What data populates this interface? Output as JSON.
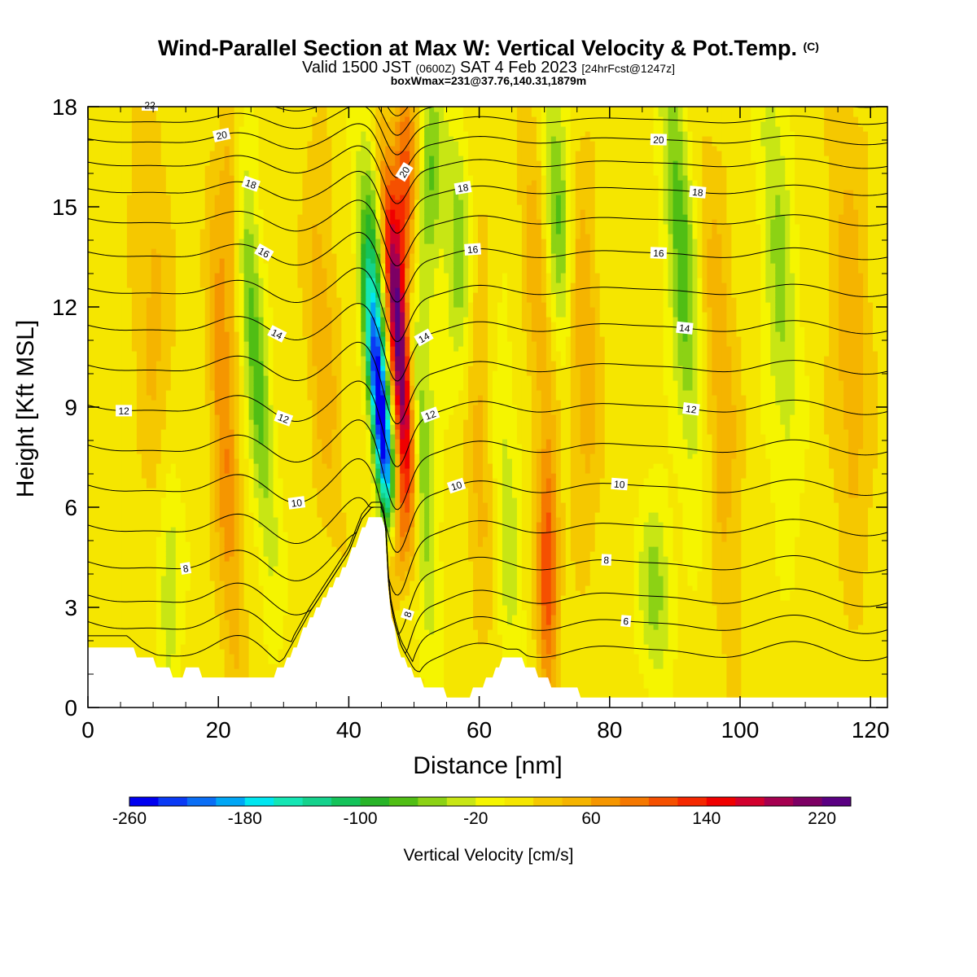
{
  "header": {
    "title_main": "Wind-Parallel Section at Max W: Vertical Velocity & Pot.Temp.",
    "title_suffix": "(C)",
    "valid_prefix": "Valid 1500 JST",
    "valid_utc": "(0600Z)",
    "valid_date": "SAT 4 Feb 2023",
    "forecast": "[24hrFcst@1247z]",
    "box_info": "boxWmax=231@37.76,140.31,1879m"
  },
  "chart_data": {
    "type": "heatmap",
    "xlabel": "Distance [nm]",
    "ylabel": "Height [Kft MSL]",
    "xlim": [
      0,
      122.6
    ],
    "ylim": [
      0,
      18
    ],
    "x_ticks": [
      0,
      20,
      40,
      60,
      80,
      100,
      120
    ],
    "y_ticks": [
      0,
      3,
      6,
      9,
      12,
      15,
      18
    ],
    "colorbar": {
      "title": "Vertical Velocity [cm/s]",
      "range": [
        -260,
        240
      ],
      "step": 20,
      "labels": [
        "-260",
        "-180",
        "-100",
        "-20",
        "60",
        "140",
        "220"
      ],
      "label_values": [
        -260,
        -180,
        -100,
        -20,
        60,
        140,
        220
      ],
      "colors": [
        "#0000f0",
        "#0a3af5",
        "#0a6ef5",
        "#00a6f5",
        "#00e6f0",
        "#14e6b4",
        "#14d28c",
        "#14c35a",
        "#28b428",
        "#50be14",
        "#8cd214",
        "#c8e614",
        "#f5f500",
        "#f5e600",
        "#f5c800",
        "#f5b400",
        "#f59600",
        "#f57800",
        "#f55000",
        "#f52800",
        "#f00000",
        "#d2002d",
        "#a50050",
        "#7d0064",
        "#5a0082"
      ],
      "value_step": 20
    },
    "background_value": 10,
    "terrain": [
      {
        "x": 0,
        "z": 1.9
      },
      {
        "x": 6,
        "z": 1.9
      },
      {
        "x": 8,
        "z": 1.55
      },
      {
        "x": 12,
        "z": 1.2
      },
      {
        "x": 14,
        "z": 0.9
      },
      {
        "x": 16,
        "z": 1.2
      },
      {
        "x": 18,
        "z": 0.95
      },
      {
        "x": 20,
        "z": 0.95
      },
      {
        "x": 28,
        "z": 0.95
      },
      {
        "x": 30,
        "z": 1.2
      },
      {
        "x": 32,
        "z": 1.9
      },
      {
        "x": 34,
        "z": 2.6
      },
      {
        "x": 36,
        "z": 3.2
      },
      {
        "x": 38,
        "z": 3.8
      },
      {
        "x": 40,
        "z": 4.4
      },
      {
        "x": 42,
        "z": 5.4
      },
      {
        "x": 43.5,
        "z": 5.75
      },
      {
        "x": 45,
        "z": 5.75
      },
      {
        "x": 45.6,
        "z": 5.4
      },
      {
        "x": 46.2,
        "z": 3.1
      },
      {
        "x": 47,
        "z": 2.3
      },
      {
        "x": 48,
        "z": 1.6
      },
      {
        "x": 50,
        "z": 0.9
      },
      {
        "x": 52,
        "z": 0.65
      },
      {
        "x": 54,
        "z": 0.6
      },
      {
        "x": 56,
        "z": 0.3
      },
      {
        "x": 58,
        "z": 0.3
      },
      {
        "x": 60,
        "z": 0.6
      },
      {
        "x": 62,
        "z": 0.9
      },
      {
        "x": 64,
        "z": 1.5
      },
      {
        "x": 66,
        "z": 1.5
      },
      {
        "x": 68,
        "z": 1.2
      },
      {
        "x": 70,
        "z": 0.9
      },
      {
        "x": 72,
        "z": 0.6
      },
      {
        "x": 75,
        "z": 0.6
      },
      {
        "x": 76,
        "z": 0.3
      },
      {
        "x": 80,
        "z": 0.3
      },
      {
        "x": 122.6,
        "z": 0.3
      }
    ],
    "features": [
      {
        "name": "lee-updraft-core",
        "x": 47.8,
        "z": 10.5,
        "sigma_x": 1.1,
        "sigma_z": 3.6,
        "tilt": -0.38,
        "w": 235
      },
      {
        "name": "lee-updraft-upper",
        "x": 48.6,
        "z": 15.5,
        "sigma_x": 1.3,
        "sigma_z": 2.5,
        "tilt": 0.0,
        "w": 110
      },
      {
        "name": "lee-updraft-low",
        "x": 47.2,
        "z": 5.0,
        "sigma_x": 1.2,
        "sigma_z": 1.5,
        "tilt": 0.0,
        "w": 120
      },
      {
        "name": "summit-downdraft",
        "x": 45.0,
        "z": 8.5,
        "sigma_x": 1.0,
        "sigma_z": 2.8,
        "tilt": -0.45,
        "w": -265
      },
      {
        "name": "downdraft-upper",
        "x": 44.0,
        "z": 13.0,
        "sigma_x": 1.4,
        "sigma_z": 3.0,
        "tilt": -0.3,
        "w": -90
      },
      {
        "name": "wave-down-51",
        "x": 51.0,
        "z": 7.0,
        "sigma_x": 1.6,
        "sigma_z": 4.0,
        "tilt": -0.2,
        "w": -80
      },
      {
        "name": "wave-down-52-upper",
        "x": 52.5,
        "z": 16.0,
        "sigma_x": 1.3,
        "sigma_z": 2.5,
        "tilt": 0.0,
        "w": -70
      },
      {
        "name": "wave-down-57",
        "x": 57.0,
        "z": 13.5,
        "sigma_x": 1.6,
        "sigma_z": 3.0,
        "tilt": -0.1,
        "w": -70
      },
      {
        "name": "wave-up-60",
        "x": 60.0,
        "z": 9.0,
        "sigma_x": 1.8,
        "sigma_z": 4.5,
        "tilt": -0.15,
        "w": 45
      },
      {
        "name": "wave-down-64",
        "x": 64.0,
        "z": 6.0,
        "sigma_x": 1.6,
        "sigma_z": 4.0,
        "tilt": -0.2,
        "w": -45
      },
      {
        "name": "wave-up-70",
        "x": 70.5,
        "z": 4.0,
        "sigma_x": 1.1,
        "sigma_z": 2.5,
        "tilt": 0.0,
        "w": 110
      },
      {
        "name": "wave-up-69-upper",
        "x": 69.0,
        "z": 13.0,
        "sigma_x": 1.5,
        "sigma_z": 4.0,
        "tilt": -0.2,
        "w": 45
      },
      {
        "name": "wave-down-72",
        "x": 72.0,
        "z": 15.0,
        "sigma_x": 1.5,
        "sigma_z": 3.0,
        "tilt": -0.2,
        "w": -75
      },
      {
        "name": "wave-up-76",
        "x": 76.0,
        "z": 11.0,
        "sigma_x": 1.6,
        "sigma_z": 4.0,
        "tilt": -0.1,
        "w": 50
      },
      {
        "name": "wave-down-87",
        "x": 87.0,
        "z": 3.5,
        "sigma_x": 1.8,
        "sigma_z": 2.0,
        "tilt": 0.0,
        "w": -60
      },
      {
        "name": "wave-down-91",
        "x": 91.0,
        "z": 13.5,
        "sigma_x": 1.6,
        "sigma_z": 4.5,
        "tilt": -0.3,
        "w": -85
      },
      {
        "name": "wave-up-97",
        "x": 97.0,
        "z": 9.5,
        "sigma_x": 1.8,
        "sigma_z": 5.0,
        "tilt": -0.2,
        "w": 45
      },
      {
        "name": "wave-down-106",
        "x": 106.0,
        "z": 13.0,
        "sigma_x": 1.8,
        "sigma_z": 5.0,
        "tilt": -0.2,
        "w": -55
      },
      {
        "name": "wave-up-117",
        "x": 117.0,
        "z": 11.0,
        "sigma_x": 2.0,
        "sigma_z": 5.0,
        "tilt": -0.1,
        "w": 45
      },
      {
        "name": "wave-up-21",
        "x": 21.0,
        "z": 7.5,
        "sigma_x": 1.3,
        "sigma_z": 4.5,
        "tilt": -0.25,
        "w": 70
      },
      {
        "name": "wave-up-22-upper",
        "x": 22.0,
        "z": 15.0,
        "sigma_x": 1.4,
        "sigma_z": 2.8,
        "tilt": 0.0,
        "w": 55
      },
      {
        "name": "wave-down-25",
        "x": 25.5,
        "z": 11.0,
        "sigma_x": 1.4,
        "sigma_z": 5.0,
        "tilt": -0.35,
        "w": -80
      },
      {
        "name": "wave-down-12",
        "x": 12.5,
        "z": 4.0,
        "sigma_x": 1.4,
        "sigma_z": 2.5,
        "tilt": 0.0,
        "w": -55
      },
      {
        "name": "wave-up-36",
        "x": 36.0,
        "z": 11.0,
        "sigma_x": 1.6,
        "sigma_z": 4.0,
        "tilt": -0.2,
        "w": 45
      },
      {
        "name": "wave-up-10",
        "x": 10.0,
        "z": 12.0,
        "sigma_x": 2.0,
        "sigma_z": 5.0,
        "tilt": -0.2,
        "w": 35
      }
    ],
    "theta_contours": {
      "levels": [
        5,
        6,
        7,
        8,
        9,
        10,
        11,
        12,
        13,
        14,
        15,
        16,
        17,
        18,
        19,
        20,
        21,
        22,
        23
      ],
      "base_heights_kft": [
        1.7,
        2.5,
        3.3,
        4.3,
        5.4,
        6.6,
        7.8,
        9.0,
        10.2,
        11.4,
        12.5,
        13.6,
        14.6,
        15.5,
        16.3,
        17.0,
        17.6,
        18.1,
        18.6
      ],
      "labeled_levels": [
        {
          "level": 6,
          "text": "6",
          "x": 82.5
        },
        {
          "level": 8,
          "text": "8",
          "x": 15.0
        },
        {
          "level": 8,
          "text": "8",
          "x": 49.0
        },
        {
          "level": 8,
          "text": "8",
          "x": 79.5
        },
        {
          "level": 10,
          "text": "10",
          "x": 32.0
        },
        {
          "level": 10,
          "text": "10",
          "x": 56.5
        },
        {
          "level": 10,
          "text": "10",
          "x": 81.5
        },
        {
          "level": 12,
          "text": "12",
          "x": 5.5
        },
        {
          "level": 12,
          "text": "12",
          "x": 30.0
        },
        {
          "level": 12,
          "text": "12",
          "x": 52.5
        },
        {
          "level": 12,
          "text": "12",
          "x": 92.5
        },
        {
          "level": 14,
          "text": "14",
          "x": 29.0
        },
        {
          "level": 14,
          "text": "14",
          "x": 51.5
        },
        {
          "level": 14,
          "text": "14",
          "x": 91.5
        },
        {
          "level": 16,
          "text": "16",
          "x": 27.0
        },
        {
          "level": 16,
          "text": "16",
          "x": 59.0
        },
        {
          "level": 16,
          "text": "16",
          "x": 87.5
        },
        {
          "level": 18,
          "text": "18",
          "x": 25.0
        },
        {
          "level": 18,
          "text": "18",
          "x": 57.5
        },
        {
          "level": 18,
          "text": "18",
          "x": 93.5
        },
        {
          "level": 20,
          "text": "20",
          "x": 20.5
        },
        {
          "level": 20,
          "text": "20",
          "x": 48.5
        },
        {
          "level": 20,
          "text": "20",
          "x": 87.5
        },
        {
          "level": 22,
          "text": "22",
          "x": 9.5
        }
      ]
    }
  }
}
